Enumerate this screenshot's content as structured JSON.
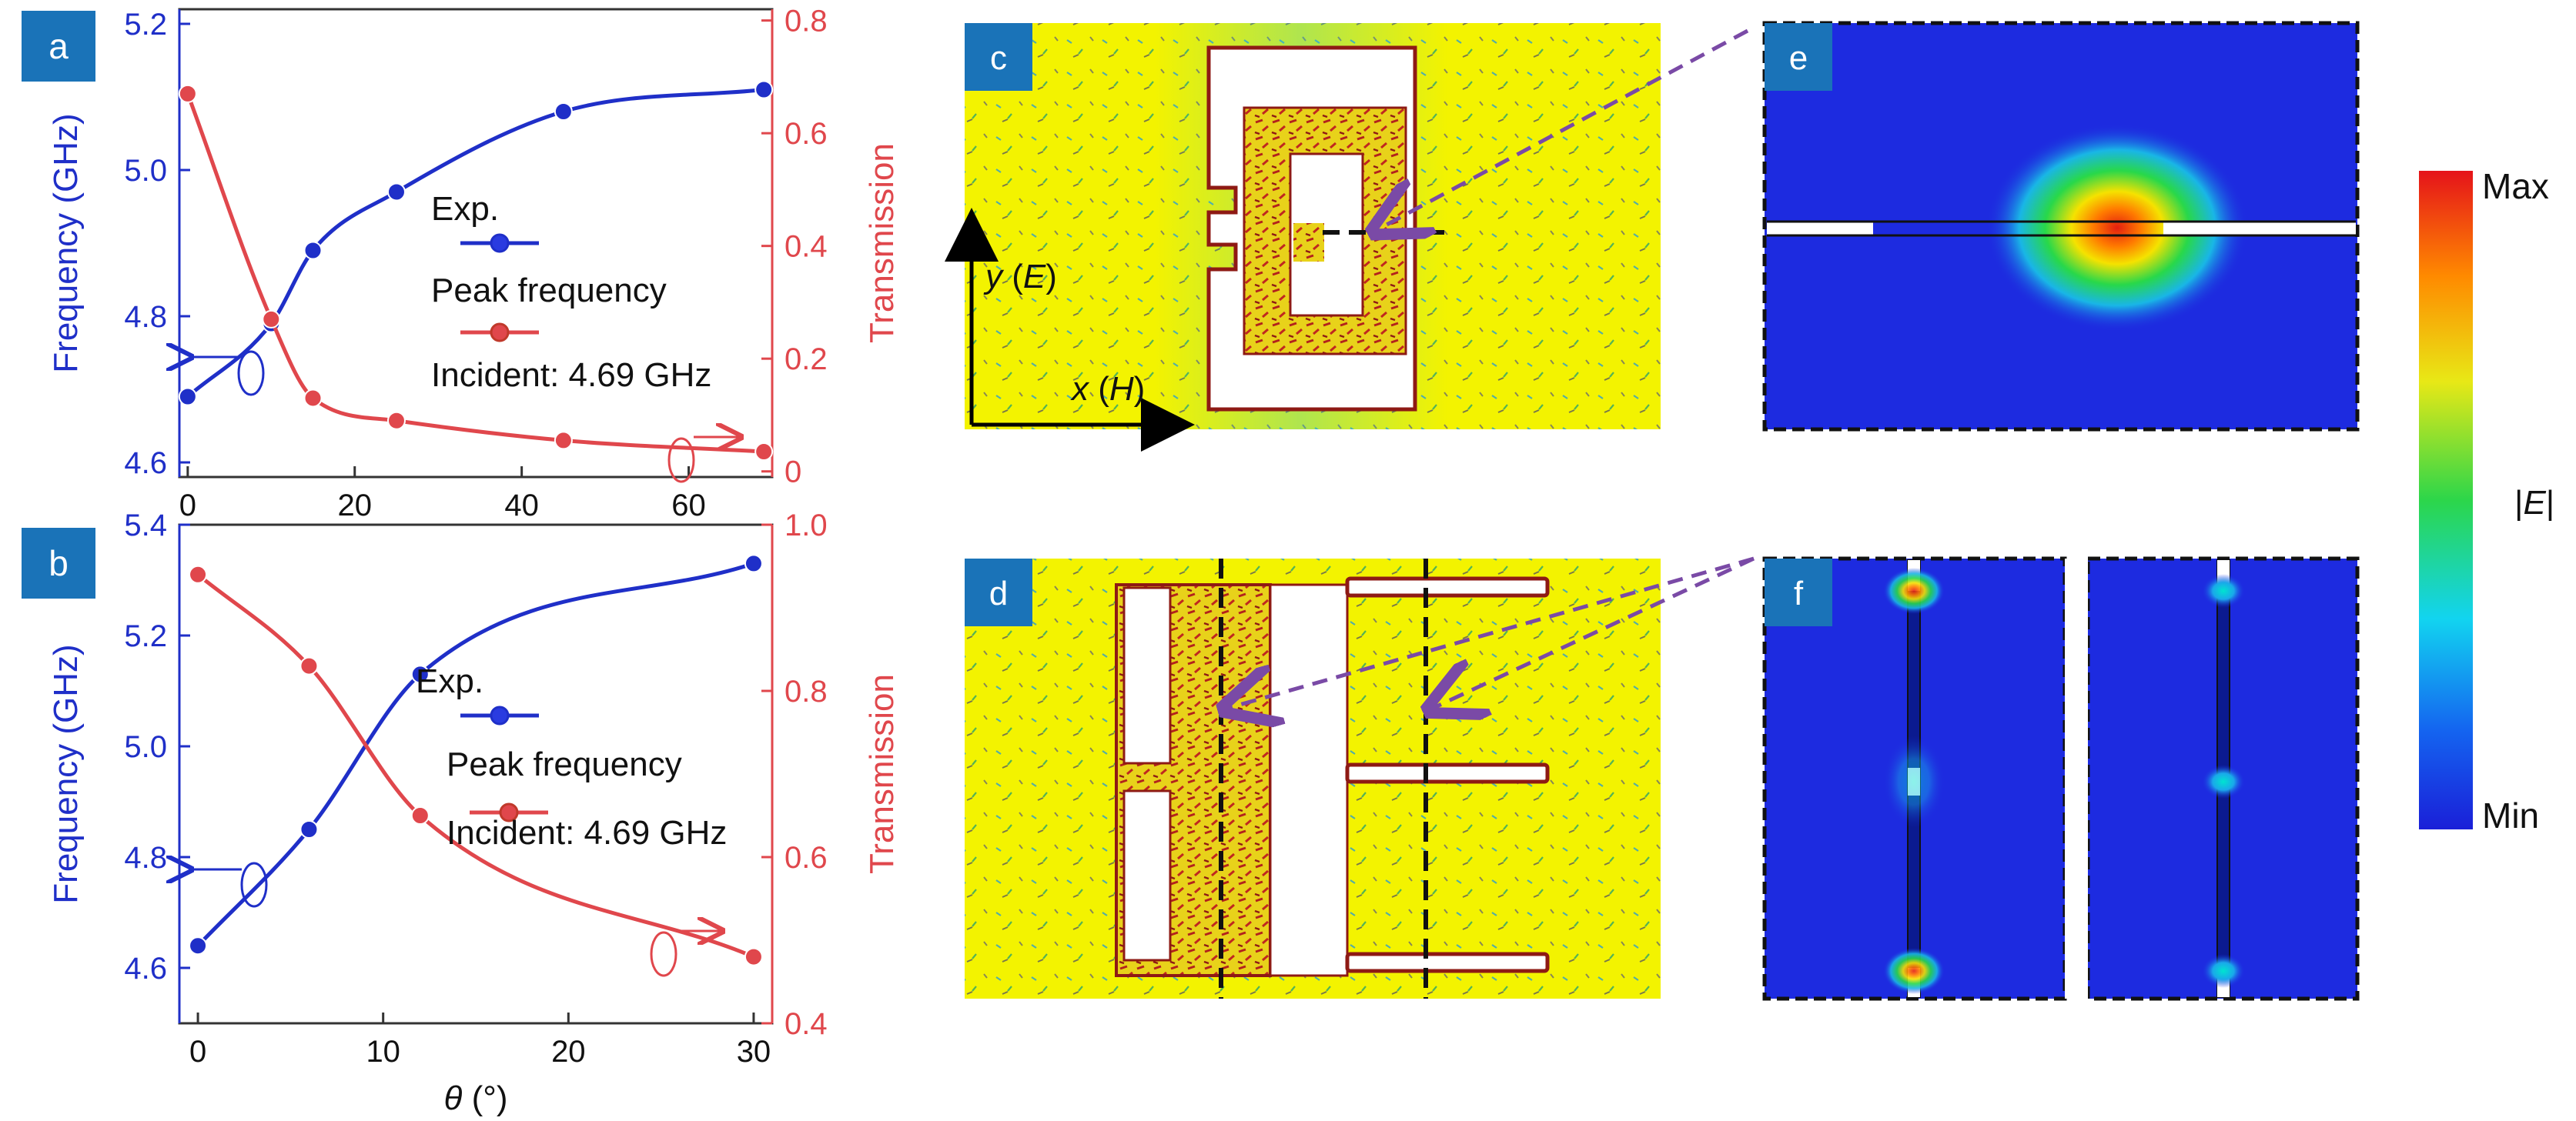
{
  "panel_labels": {
    "a": "a",
    "b": "b",
    "c": "c",
    "d": "d",
    "e": "e",
    "f": "f"
  },
  "colors": {
    "blue": "#1f2fc8",
    "red": "#e0474c",
    "panel_tag": "#1a73b8",
    "field_bg": "#f3f300",
    "arrow": "#7a4aa6",
    "map_bg": "#1d2be0"
  },
  "axis_titles": {
    "a_left": "Frequency (GHz)",
    "a_right": "Transmission",
    "b_left": "Frequency (GHz)",
    "b_right": "Transmission",
    "x_shared_sym": "θ",
    "x_shared_unit": " (°)"
  },
  "legend_a": {
    "exp": "Exp.",
    "peak": "Peak frequency",
    "incident": "Incident: 4.69 GHz"
  },
  "legend_b": {
    "exp": "Exp.",
    "peak": "Peak frequency",
    "incident": "Incident: 4.69 GHz"
  },
  "field_axes": {
    "y_sym": "y",
    "y_field": "E",
    "x_sym": "x",
    "x_field": "H"
  },
  "colorbar": {
    "max": "Max",
    "min": "Min",
    "quantity": "E"
  },
  "chart_data": [
    {
      "id": "a",
      "type": "line",
      "xlabel": "θ (°)",
      "ylabel": "Frequency (GHz)",
      "y2label": "Transmission",
      "xlim": [
        -1,
        70
      ],
      "ylim": [
        4.58,
        5.22
      ],
      "y2lim": [
        -0.01,
        0.82
      ],
      "xticks": [
        0,
        20,
        40,
        60
      ],
      "yticks": [
        4.6,
        4.8,
        5.0,
        5.2
      ],
      "y2ticks": [
        0,
        0.2,
        0.4,
        0.6,
        0.8
      ],
      "series": [
        {
          "name": "Peak frequency",
          "axis": "left",
          "color": "#1f2fc8",
          "x": [
            0,
            10,
            15,
            25,
            45,
            69
          ],
          "y": [
            4.69,
            4.79,
            4.89,
            4.97,
            5.08,
            5.11
          ]
        },
        {
          "name": "Incident: 4.69 GHz",
          "axis": "right",
          "color": "#e0474c",
          "x": [
            0,
            10,
            15,
            25,
            45,
            69
          ],
          "y": [
            0.67,
            0.27,
            0.13,
            0.09,
            0.055,
            0.035
          ]
        }
      ]
    },
    {
      "id": "b",
      "type": "line",
      "xlabel": "θ (°)",
      "ylabel": "Frequency (GHz)",
      "y2label": "Transmission",
      "xlim": [
        -1,
        31
      ],
      "ylim": [
        4.5,
        5.4
      ],
      "y2lim": [
        0.4,
        1.0
      ],
      "xticks": [
        0,
        10,
        20,
        30
      ],
      "yticks": [
        4.6,
        4.8,
        5.0,
        5.2,
        5.4
      ],
      "y2ticks": [
        0.4,
        0.6,
        0.8,
        1.0
      ],
      "series": [
        {
          "name": "Peak frequency",
          "axis": "left",
          "color": "#1f2fc8",
          "x": [
            0,
            6,
            12,
            30
          ],
          "y": [
            4.64,
            4.85,
            5.13,
            5.33
          ]
        },
        {
          "name": "Incident: 4.69 GHz",
          "axis": "right",
          "color": "#e0474c",
          "x": [
            0,
            6,
            12,
            30
          ],
          "y": [
            0.94,
            0.83,
            0.65,
            0.48
          ]
        }
      ]
    }
  ]
}
